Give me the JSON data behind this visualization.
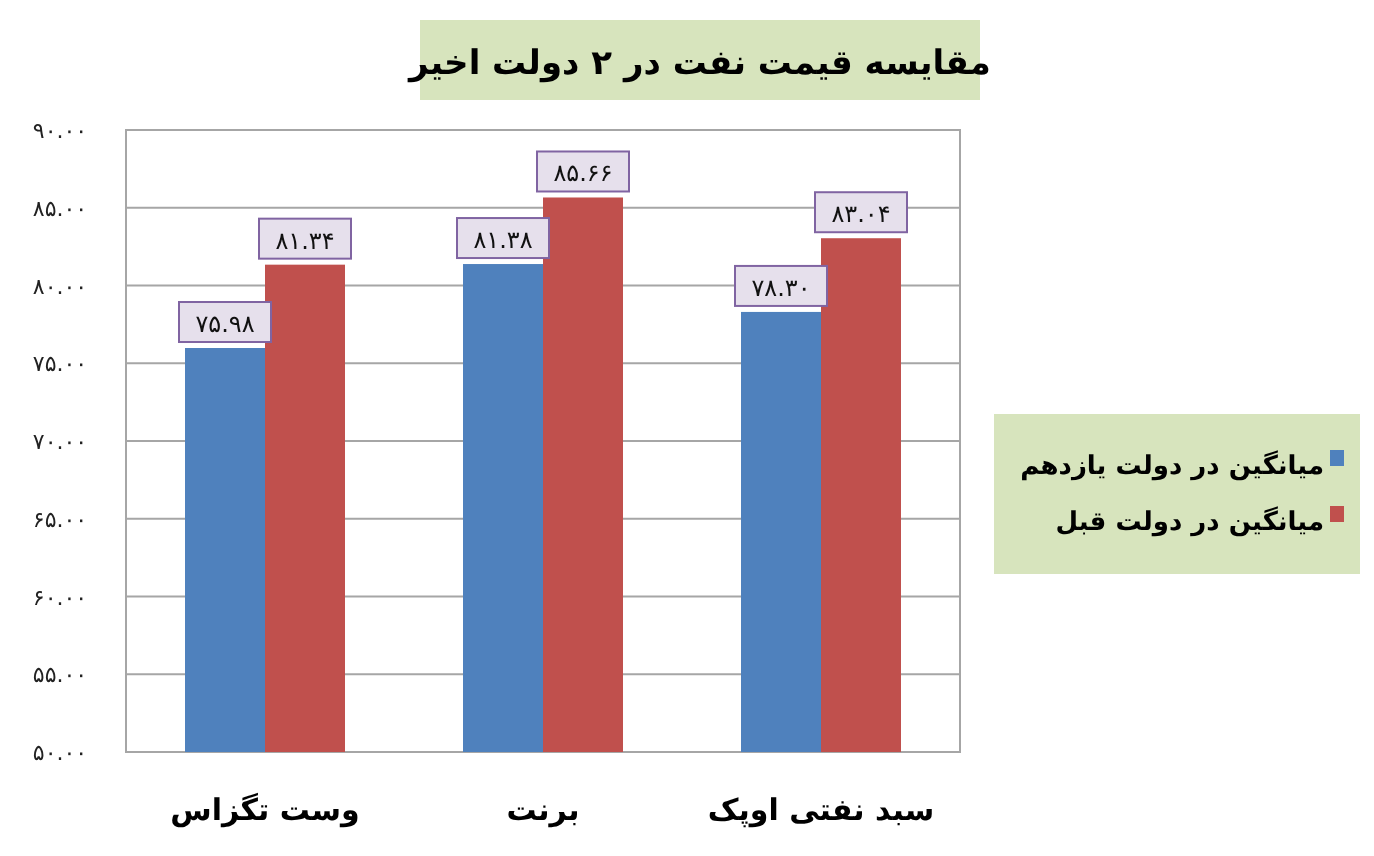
{
  "chart_data": {
    "type": "bar",
    "title": "مقایسه قیمت نفت در ۲ دولت اخیر",
    "categories": [
      "وست تگزاس",
      "برنت",
      "سبد نفتی اوپک"
    ],
    "series": [
      {
        "name": "میانگین در دولت یازدهم",
        "color": "#4f81bd",
        "values": [
          75.98,
          81.38,
          78.3
        ],
        "value_labels": [
          "۷۵.۹۸",
          "۸۱.۳۸",
          "۷۸.۳۰"
        ]
      },
      {
        "name": "میانگین در دولت قبل",
        "color": "#c0504d",
        "values": [
          81.34,
          85.66,
          83.04
        ],
        "value_labels": [
          "۸۱.۳۴",
          "۸۵.۶۶",
          "۸۳.۰۴"
        ]
      }
    ],
    "ylim": [
      50,
      90
    ],
    "yticks": [
      {
        "value": 50,
        "label": "۵۰.۰۰"
      },
      {
        "value": 55,
        "label": "۵۵.۰۰"
      },
      {
        "value": 60,
        "label": "۶۰.۰۰"
      },
      {
        "value": 65,
        "label": "۶۵.۰۰"
      },
      {
        "value": 70,
        "label": "۷۰.۰۰"
      },
      {
        "value": 75,
        "label": "۷۵.۰۰"
      },
      {
        "value": 80,
        "label": "۸۰.۰۰"
      },
      {
        "value": 85,
        "label": "۸۵.۰۰"
      },
      {
        "value": 90,
        "label": "۹۰.۰۰"
      }
    ],
    "grid": "y",
    "legend": "right"
  }
}
